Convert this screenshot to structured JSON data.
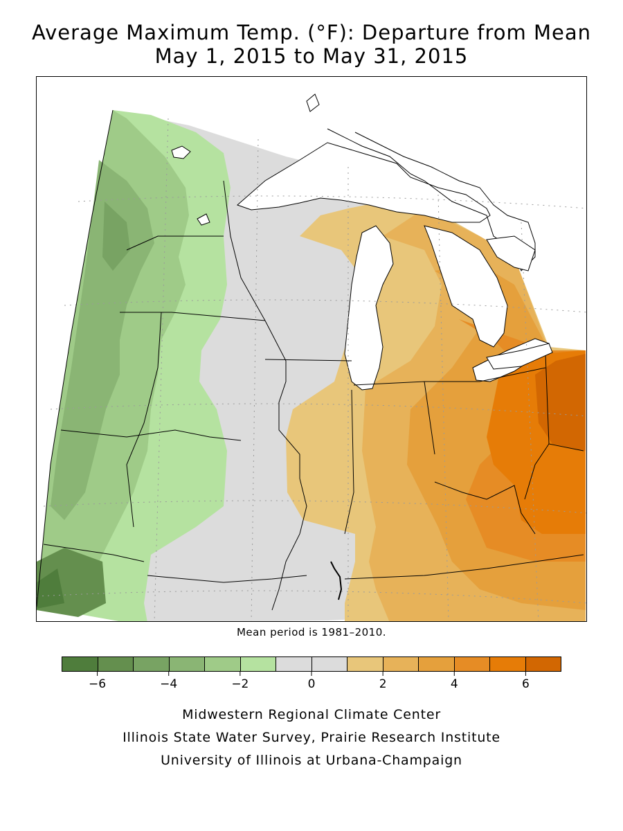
{
  "title": {
    "line1": "Average Maximum Temp. (°F): Departure from Mean",
    "line2": "May 1, 2015 to May 31, 2015"
  },
  "mean_period": "Mean period is 1981–2010.",
  "legend": {
    "bins": [
      {
        "min": -7,
        "max": -6,
        "color": "#4f7d3c"
      },
      {
        "min": -6,
        "max": -5,
        "color": "#648f4e"
      },
      {
        "min": -5,
        "max": -4,
        "color": "#78a363"
      },
      {
        "min": -4,
        "max": -3,
        "color": "#8ab574"
      },
      {
        "min": -3,
        "max": -2,
        "color": "#9fcb88"
      },
      {
        "min": -2,
        "max": -1,
        "color": "#b5e2a0"
      },
      {
        "min": -1,
        "max": 0,
        "color": "#dcdcdc"
      },
      {
        "min": 0,
        "max": 1,
        "color": "#dcdcdc"
      },
      {
        "min": 1,
        "max": 2,
        "color": "#e8c67a"
      },
      {
        "min": 2,
        "max": 3,
        "color": "#e7b259"
      },
      {
        "min": 3,
        "max": 4,
        "color": "#e5a03c"
      },
      {
        "min": 4,
        "max": 5,
        "color": "#e68c25"
      },
      {
        "min": 5,
        "max": 6,
        "color": "#e67c07"
      },
      {
        "min": 6,
        "max": 7,
        "color": "#d26702"
      }
    ],
    "tick_labels": [
      {
        "value": -6,
        "label": "−6"
      },
      {
        "value": -4,
        "label": "−4"
      },
      {
        "value": -2,
        "label": "−2"
      },
      {
        "value": 0,
        "label": "0"
      },
      {
        "value": 2,
        "label": "2"
      },
      {
        "value": 4,
        "label": "4"
      },
      {
        "value": 6,
        "label": "6"
      }
    ]
  },
  "credits": {
    "line1": "Midwestern Regional Climate Center",
    "line2": "Illinois State Water Survey, Prairie Research Institute",
    "line3": "University of Illinois at Urbana-Champaign"
  },
  "map_colors": {
    "lake": "#ffffff",
    "border": "#000000",
    "grid": "#9a9a9a"
  }
}
